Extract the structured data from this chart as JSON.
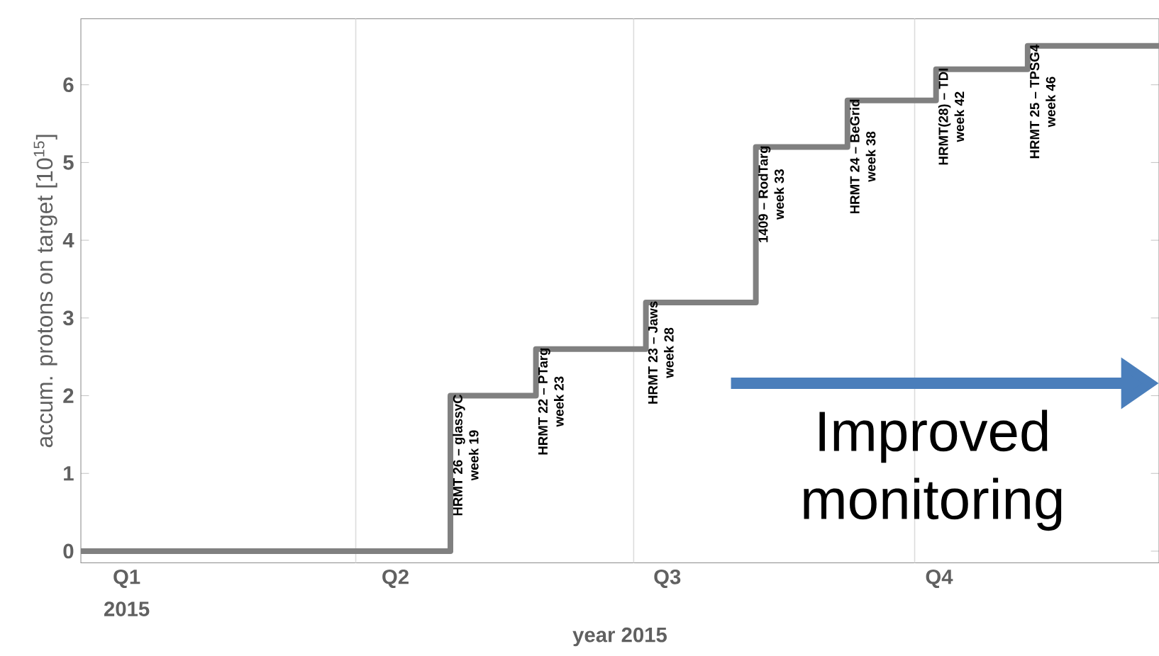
{
  "chart_data": {
    "type": "step",
    "xlabel": "year 2015",
    "ylabel": "accum. protons on target [10$^{15}$]",
    "x": [
      "2015-01-01",
      "2015-05-02",
      "2015-05-30",
      "2015-07-05",
      "2015-08-10",
      "2015-09-09",
      "2015-10-08",
      "2015-11-07",
      "2015-12-20"
    ],
    "values": [
      0,
      2.0,
      2.6,
      3.2,
      5.2,
      5.8,
      6.2,
      6.5,
      6.5
    ],
    "color": "#808080",
    "xlim": [
      "2015-01-01",
      "2015-12-20"
    ],
    "ylim": [
      -0.15,
      6.85
    ],
    "xticks": [
      {
        "value": "2015-01-16",
        "label": "Q1"
      },
      {
        "value": "2015-04-14",
        "label": "Q2"
      },
      {
        "value": "2015-07-12",
        "label": "Q3"
      },
      {
        "value": "2015-10-09",
        "label": "Q4"
      }
    ],
    "yticks": [
      0,
      1,
      2,
      3,
      4,
      5,
      6
    ],
    "ref_lines": [
      {
        "axis": "x",
        "value": "2015-04-01",
        "color": "#dcdcdc"
      },
      {
        "axis": "x",
        "value": "2015-07-01",
        "color": "#dcdcdc"
      },
      {
        "axis": "x",
        "value": "2015-10-01",
        "color": "#dcdcdc"
      }
    ],
    "annotations": [
      "2015",
      {
        "text": "HRMT 26 – glassyC",
        "x": "2015-05-02",
        "y": 2.0
      },
      {
        "text": "week 19",
        "x": "2015-05-02",
        "y": 2.0
      },
      {
        "text": "HRMT 22 – PTarg",
        "x": "2015-05-30",
        "y": 2.6
      },
      {
        "text": "week 23",
        "x": "2015-05-30",
        "y": 2.6
      },
      {
        "text": "HRMT 23 – Jaws",
        "x": "2015-07-05",
        "y": 3.2
      },
      {
        "text": "week 28",
        "x": "2015-07-05",
        "y": 3.2
      },
      {
        "text": "1409 – RodTarg",
        "x": "2015-08-10",
        "y": 5.2
      },
      {
        "text": "week 33",
        "x": "2015-08-10",
        "y": 5.2
      },
      {
        "text": "HRMT 24 – BeGrid",
        "x": "2015-09-09",
        "y": 5.8
      },
      {
        "text": "week 38",
        "x": "2015-09-09",
        "y": 5.8
      },
      {
        "text": "HRMT(28) – TDI",
        "x": "2015-10-08",
        "y": 6.2
      },
      {
        "text": "week 42",
        "x": "2015-10-08",
        "y": 6.2
      },
      {
        "text": "HRMT 25 – TPSG4",
        "x": "2015-11-07",
        "y": 6.5
      },
      {
        "text": "week 46",
        "x": "2015-11-07",
        "y": 6.5
      },
      "Improved monitoring"
    ]
  }
}
